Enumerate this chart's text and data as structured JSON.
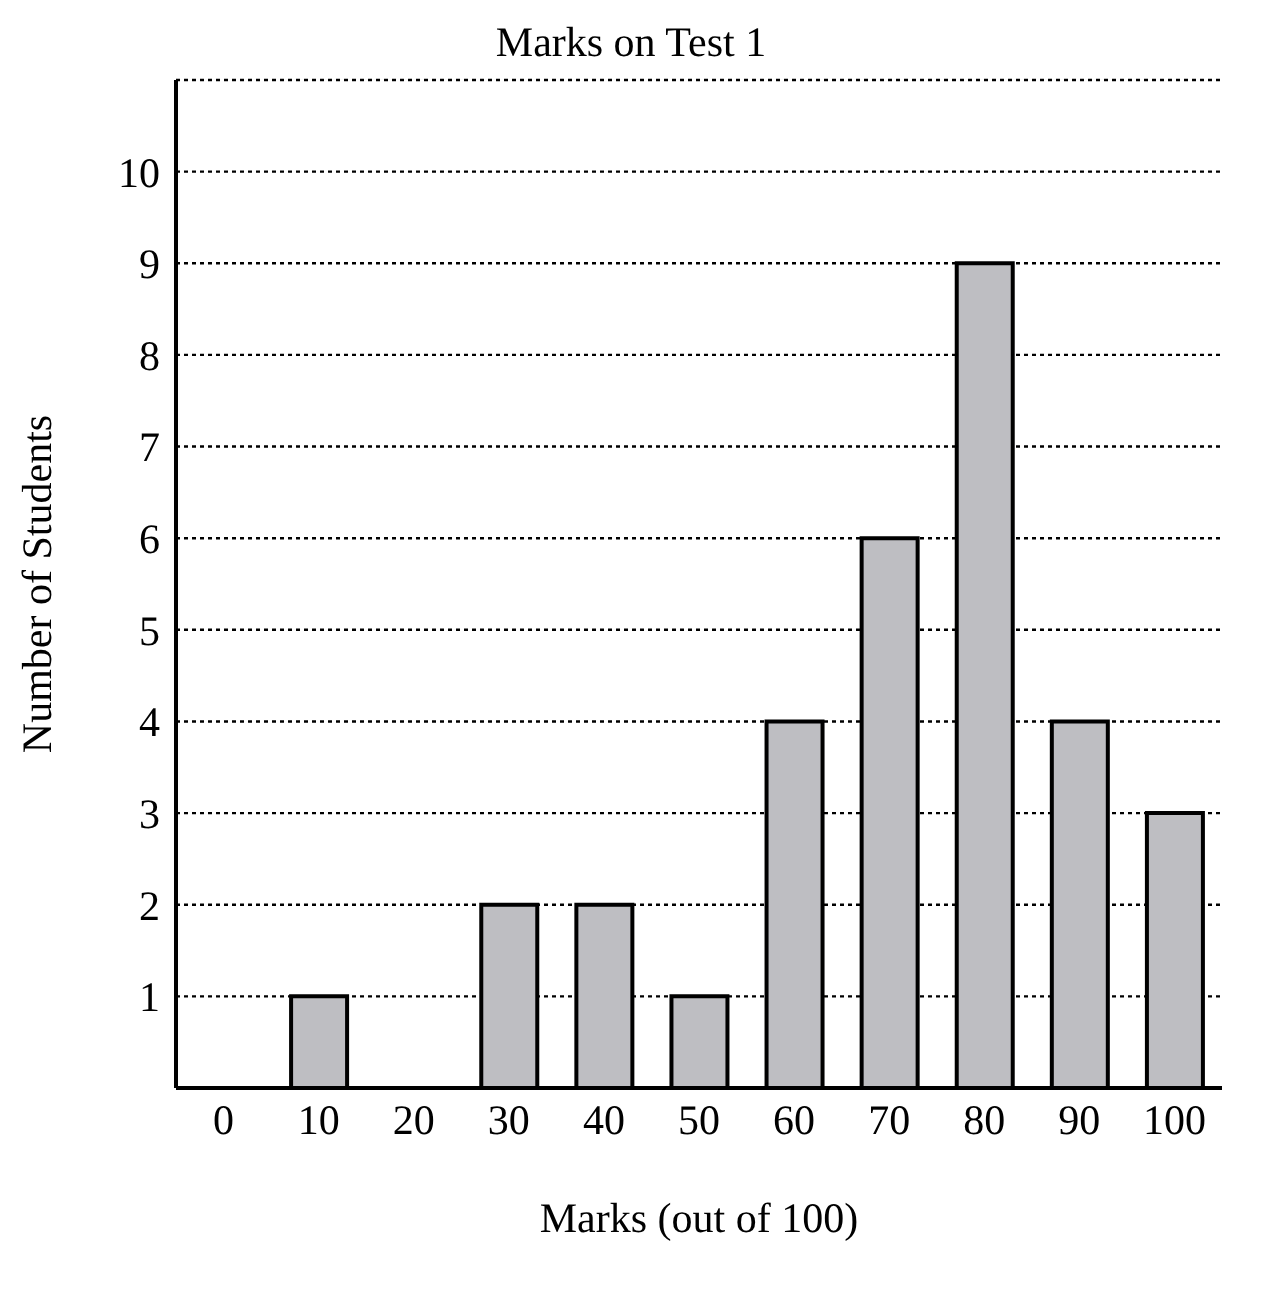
{
  "chart_data": {
    "type": "bar",
    "title": "Marks on Test 1",
    "xlabel": "Marks (out of 100)",
    "ylabel": "Number of Students",
    "categories": [
      "0",
      "10",
      "20",
      "30",
      "40",
      "50",
      "60",
      "70",
      "80",
      "90",
      "100"
    ],
    "values": [
      0,
      1,
      0,
      2,
      2,
      1,
      4,
      6,
      9,
      4,
      3
    ],
    "color": "#bebec2",
    "ylim": [
      0,
      11
    ],
    "yticks": [
      1,
      2,
      3,
      4,
      5,
      6,
      7,
      8,
      9,
      10
    ],
    "grid": "y",
    "legend": false
  }
}
